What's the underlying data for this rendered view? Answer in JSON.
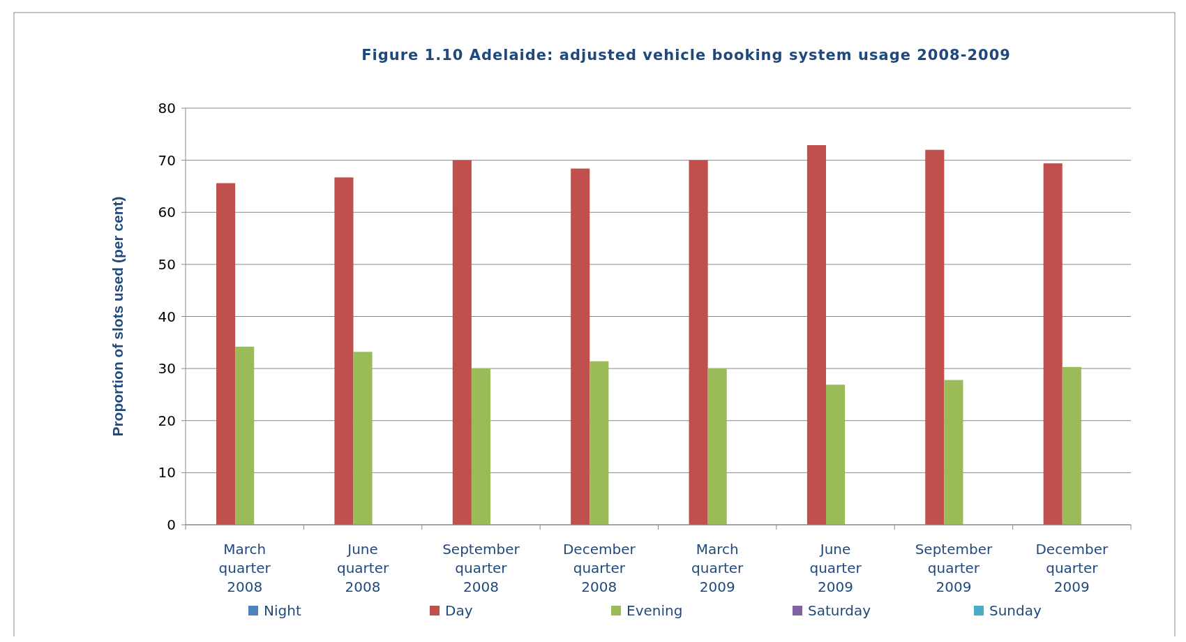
{
  "chart_data": {
    "type": "bar",
    "title": "Figure 1.10  Adelaide: adjusted vehicle booking system usage 2008-2009",
    "ylabel": "Proportion of slots used (per cent)",
    "categories": [
      "March quarter 2008",
      "June quarter 2008",
      "September quarter 2008",
      "December quarter 2008",
      "March quarter 2009",
      "June quarter 2009",
      "September quarter 2009",
      "December quarter 2009"
    ],
    "series": [
      {
        "name": "Night",
        "color": "#4f81bd",
        "values": [
          null,
          null,
          null,
          null,
          null,
          null,
          null,
          null
        ]
      },
      {
        "name": "Day",
        "color": "#c0504d",
        "values": [
          65.6,
          66.7,
          70.0,
          68.4,
          70.0,
          72.9,
          72.0,
          69.4
        ]
      },
      {
        "name": "Evening",
        "color": "#9bbb59",
        "values": [
          34.2,
          33.2,
          30.0,
          31.4,
          30.0,
          26.9,
          27.8,
          30.3
        ]
      },
      {
        "name": "Saturday",
        "color": "#8064a2",
        "values": [
          null,
          null,
          null,
          null,
          null,
          null,
          null,
          null
        ]
      },
      {
        "name": "Sunday",
        "color": "#4bacc6",
        "values": [
          null,
          null,
          null,
          null,
          null,
          null,
          null,
          null
        ]
      }
    ],
    "ylim": [
      0,
      80
    ],
    "yticks": [
      0,
      10,
      20,
      30,
      40,
      50,
      60,
      70,
      80
    ],
    "grid": "y",
    "legend": "bottom"
  }
}
